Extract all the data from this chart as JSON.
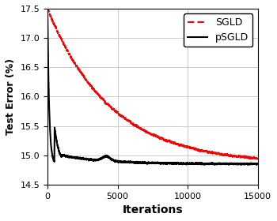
{
  "title": "",
  "xlabel": "Iterations",
  "ylabel": "Test Error (%)",
  "xlim": [
    0,
    15000
  ],
  "ylim": [
    14.5,
    17.5
  ],
  "yticks": [
    14.5,
    15.0,
    15.5,
    16.0,
    16.5,
    17.0,
    17.5
  ],
  "xticks": [
    0,
    5000,
    10000,
    15000
  ],
  "sgld_color": "#ff0000",
  "psgld_color": "#000000",
  "background_color": "#ffffff",
  "grid_color": "#cccccc",
  "legend_entries": [
    "SGLD",
    "pSGLD"
  ]
}
